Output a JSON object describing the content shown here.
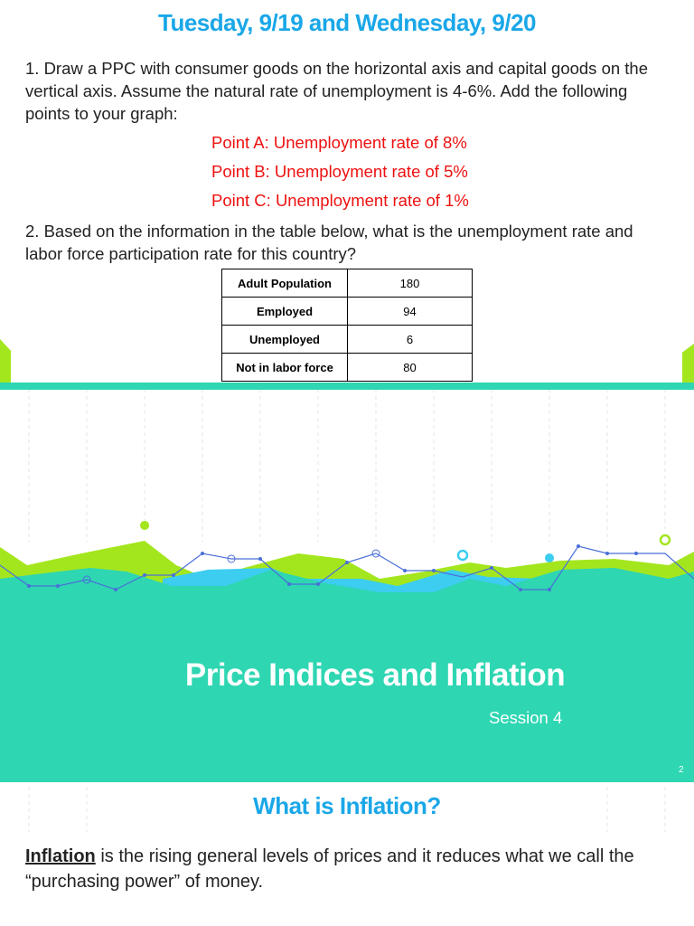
{
  "slide1": {
    "title": "Tuesday, 9/19 and Wednesday, 9/20",
    "question1": "1. Draw a PPC with consumer goods on the horizontal axis and capital goods on the vertical axis. Assume the natural rate of unemployment is 4-6%. Add the following points to your graph:",
    "points": [
      "Point A: Unemployment rate of 8%",
      "Point B: Unemployment rate of 5%",
      "Point C: Unemployment rate of 1%"
    ],
    "question2": "2. Based on the information in the table below, what is the unemployment rate and labor force participation rate for this country?",
    "table": {
      "rows": [
        [
          "Adult Population",
          180
        ],
        [
          "Employed",
          94
        ],
        [
          "Unemployed",
          6
        ],
        [
          "Not in labor force",
          80
        ]
      ]
    }
  },
  "slide2": {
    "title": "Price Indices and Inflation",
    "subtitle": "Session 4",
    "page_number": 2
  },
  "slide3": {
    "title": "What is Inflation?",
    "term": "Inflation",
    "definition": "is the rising general levels of prices and it reduces what we call the “purchasing power” of money."
  }
}
